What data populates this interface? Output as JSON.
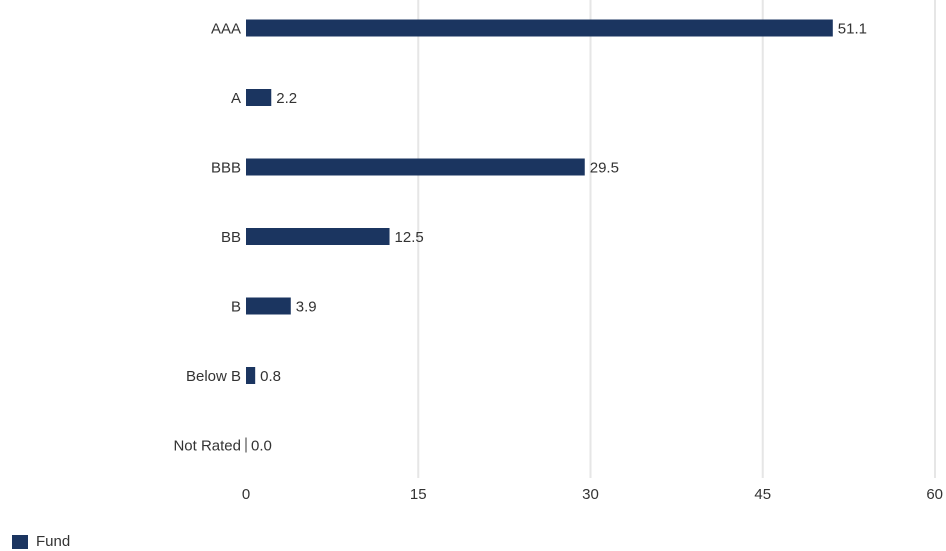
{
  "chart_data": {
    "type": "bar",
    "orientation": "horizontal",
    "categories": [
      "AAA",
      "A",
      "BBB",
      "BB",
      "B",
      "Below B",
      "Not Rated"
    ],
    "series": [
      {
        "name": "Fund",
        "values": [
          51.1,
          2.2,
          29.5,
          12.5,
          3.9,
          0.8,
          0.0
        ]
      }
    ],
    "value_labels": [
      "51.1",
      "2.2",
      "29.5",
      "12.5",
      "3.9",
      "0.8",
      "0.0"
    ],
    "xlim": [
      0,
      60
    ],
    "xticks": [
      "0",
      "15",
      "30",
      "45",
      "60"
    ],
    "xtick_values": [
      0,
      15,
      30,
      45,
      60
    ],
    "grid": "vertical",
    "legend": "bottom-left",
    "colors": {
      "bar": "#1b3560",
      "grid": "#e6e6e6",
      "text": "#333333"
    },
    "title": "",
    "xlabel": "",
    "ylabel": ""
  }
}
